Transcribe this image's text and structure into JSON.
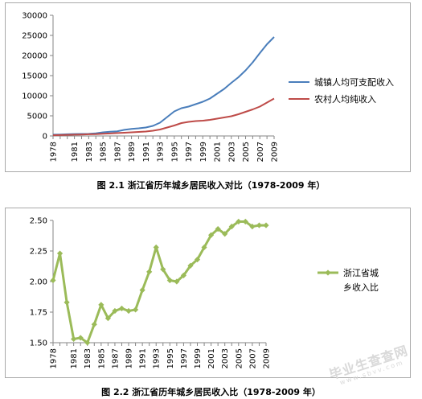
{
  "chart_data": [
    {
      "type": "line",
      "x": [
        "1978",
        "1979",
        "1980",
        "1981",
        "1982",
        "1983",
        "1984",
        "1985",
        "1986",
        "1987",
        "1988",
        "1989",
        "1990",
        "1991",
        "1992",
        "1993",
        "1994",
        "1995",
        "1996",
        "1997",
        "1998",
        "1999",
        "2000",
        "2001",
        "2002",
        "2003",
        "2004",
        "2005",
        "2006",
        "2007",
        "2008",
        "2009"
      ],
      "x_tick_labels": [
        "1978",
        "1981",
        "1983",
        "1985",
        "1987",
        "1989",
        "1991",
        "1993",
        "1995",
        "1997",
        "1999",
        "2001",
        "2003",
        "2005",
        "2007",
        "2009"
      ],
      "y_tick_labels": [
        "0",
        "5000",
        "10000",
        "15000",
        "20000",
        "25000",
        "30000"
      ],
      "ylim": [
        0,
        30000
      ],
      "grid": false,
      "legend_position": "right",
      "series": [
        {
          "name": "城镇人均可支配收入",
          "color": "#4a7ebb",
          "values": [
            332,
            360,
            422,
            470,
            500,
            530,
            650,
            900,
            1050,
            1150,
            1520,
            1750,
            1900,
            2100,
            2500,
            3300,
            4700,
            6100,
            6900,
            7300,
            7900,
            8500,
            9300,
            10500,
            11700,
            13200,
            14600,
            16300,
            18300,
            20600,
            22800,
            24600
          ]
        },
        {
          "name": "农村人均纯收入",
          "color": "#be4b48",
          "values": [
            165,
            215,
            280,
            320,
            360,
            420,
            460,
            550,
            630,
            720,
            810,
            900,
            1000,
            1100,
            1300,
            1600,
            2100,
            2600,
            3200,
            3500,
            3700,
            3800,
            4000,
            4300,
            4600,
            4900,
            5400,
            6000,
            6600,
            7300,
            8300,
            9300
          ]
        }
      ],
      "caption": "图 2.1 浙江省历年城乡居民收入对比（1978-2009 年）"
    },
    {
      "type": "line",
      "x": [
        "1978",
        "1979",
        "1980",
        "1981",
        "1982",
        "1983",
        "1984",
        "1985",
        "1986",
        "1987",
        "1988",
        "1989",
        "1990",
        "1991",
        "1992",
        "1993",
        "1994",
        "1995",
        "1996",
        "1997",
        "1998",
        "1999",
        "2000",
        "2001",
        "2002",
        "2003",
        "2004",
        "2005",
        "2006",
        "2007",
        "2008",
        "2009"
      ],
      "x_tick_labels": [
        "1978",
        "1981",
        "1983",
        "1985",
        "1987",
        "1989",
        "1991",
        "1993",
        "1995",
        "1997",
        "1999",
        "2001",
        "2003",
        "2005",
        "2007",
        "2009"
      ],
      "y_tick_labels": [
        "1.50",
        "1.75",
        "2.00",
        "2.25",
        "2.50"
      ],
      "ylim": [
        1.5,
        2.5
      ],
      "grid": false,
      "legend_position": "right",
      "series": [
        {
          "name": "浙江省城乡收入比",
          "name_lines": [
            "浙江省城",
            "乡收入比"
          ],
          "color": "#9bbb59",
          "values": [
            2.01,
            2.23,
            1.83,
            1.53,
            1.54,
            1.5,
            1.65,
            1.81,
            1.7,
            1.76,
            1.78,
            1.76,
            1.77,
            1.93,
            2.08,
            2.28,
            2.1,
            2.01,
            2.0,
            2.05,
            2.13,
            2.18,
            2.28,
            2.38,
            2.43,
            2.39,
            2.45,
            2.49,
            2.49,
            2.45,
            2.46,
            2.46
          ]
        }
      ],
      "caption": "图 2.2 浙江省历年城乡居民收入比（1978-2009 年）"
    }
  ],
  "watermark": {
    "line1": "毕业生查查网",
    "line2": "www.sbvv.com"
  }
}
